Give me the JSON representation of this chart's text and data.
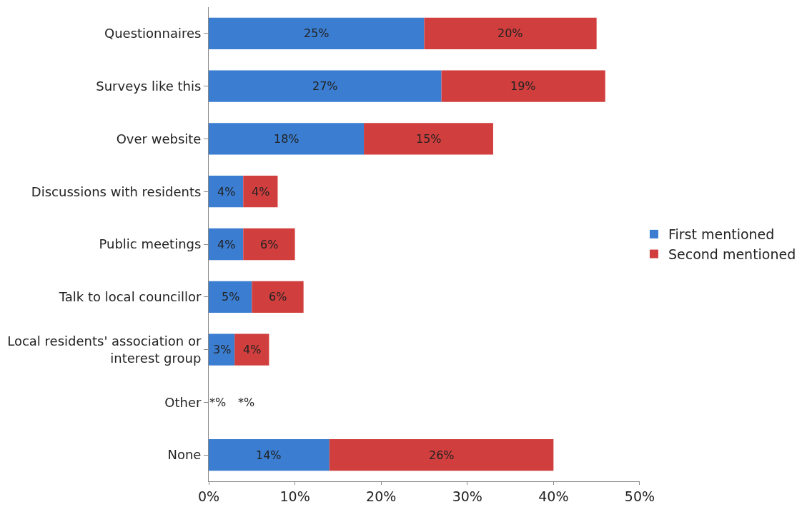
{
  "chart_data": {
    "type": "bar",
    "orientation": "horizontal",
    "stacked": true,
    "categories": [
      "Questionnaires",
      "Surveys like this",
      "Over website",
      "Discussions with residents",
      "Public meetings",
      "Talk to local councillor",
      "Local residents' association or interest group",
      "Other",
      "None"
    ],
    "series": [
      {
        "name": "First mentioned",
        "color": "#3b7dd0",
        "values": [
          25,
          27,
          18,
          4,
          4,
          5,
          3,
          0,
          14
        ],
        "value_labels": [
          "25%",
          "27%",
          "18%",
          "4%",
          "4%",
          "5%",
          "3%",
          "*%",
          "14%"
        ]
      },
      {
        "name": "Second mentioned",
        "color": "#d13e3e",
        "values": [
          20,
          19,
          15,
          4,
          6,
          6,
          4,
          0,
          26
        ],
        "value_labels": [
          "20%",
          "19%",
          "15%",
          "4%",
          "6%",
          "6%",
          "4%",
          "*%",
          "26%"
        ]
      }
    ],
    "xlim": [
      0,
      50
    ],
    "xticks": [
      {
        "value": 0,
        "label": "0%"
      },
      {
        "value": 10,
        "label": "10%"
      },
      {
        "value": 20,
        "label": "20%"
      },
      {
        "value": 30,
        "label": "30%"
      },
      {
        "value": 40,
        "label": "40%"
      },
      {
        "value": 50,
        "label": "50%"
      }
    ],
    "legend": "right"
  }
}
